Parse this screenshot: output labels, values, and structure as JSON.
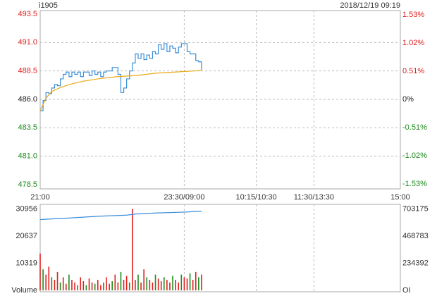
{
  "header": {
    "symbol": "i1905",
    "datetime": "2018/12/19 09:19"
  },
  "chart_data": [
    {
      "type": "line",
      "base": 486,
      "up_color": "#e02020",
      "down_color": "#1e8c1e",
      "grid": true,
      "xlim": [
        0,
        375
      ],
      "xticks": [
        {
          "value": 0,
          "label": "21:00"
        },
        {
          "value": 150,
          "label": "23:30/09:00"
        },
        {
          "value": 225,
          "label": "10:15/10:30"
        },
        {
          "value": 285,
          "label": "11:30/13:30"
        },
        {
          "value": 375,
          "label": "15:00"
        }
      ],
      "ylim": [
        478.5,
        493.5
      ],
      "yticks": [
        493.5,
        {
          "value": 491,
          "label": "491.0"
        },
        488.5,
        {
          "value": 486,
          "label": "486.0"
        },
        483.5,
        {
          "value": 481,
          "label": "481.0"
        },
        478.5
      ],
      "y2lim": [
        -1.543,
        1.543
      ],
      "y2ticks": [
        {
          "value": 1.53,
          "label": "1.53%"
        },
        {
          "value": 1.02,
          "label": "1.02%"
        },
        {
          "value": 0.51,
          "label": "0.51%"
        },
        {
          "value": 0,
          "label": "0%"
        },
        {
          "value": -0.51,
          "label": "-0.51%"
        },
        {
          "value": -1.02,
          "label": "-1.02%"
        },
        {
          "value": -1.53,
          "label": "-1.53%"
        }
      ],
      "series": [
        {
          "color": "#3a8ed8",
          "step": true,
          "x": [
            0,
            3,
            6,
            9,
            12,
            15,
            18,
            21,
            24,
            27,
            30,
            33,
            36,
            39,
            42,
            45,
            48,
            51,
            54,
            57,
            60,
            63,
            66,
            69,
            72,
            75,
            78,
            81,
            84,
            87,
            90,
            93,
            96,
            99,
            102,
            105,
            108,
            111,
            114,
            117,
            120,
            123,
            126,
            129,
            132,
            135,
            138,
            141,
            144,
            147,
            150,
            153,
            156,
            159,
            162,
            165,
            168
          ],
          "values": [
            485.0,
            485.9,
            486.6,
            486.5,
            487.0,
            487.3,
            487.2,
            487.8,
            488.2,
            488.4,
            488.0,
            488.4,
            488.2,
            488.4,
            488.0,
            488.4,
            488.4,
            488.1,
            488.5,
            488.2,
            488.4,
            488.0,
            488.4,
            488.5,
            488.5,
            488.8,
            488.8,
            488.2,
            486.6,
            487.0,
            487.8,
            488.5,
            489.2,
            490.0,
            489.6,
            490.0,
            489.5,
            489.9,
            489.6,
            490.2,
            490.0,
            490.8,
            490.4,
            490.9,
            490.2,
            490.7,
            490.5,
            490.1,
            490.6,
            490.9,
            490.9,
            490.2,
            490.0,
            490.0,
            489.4,
            489.3,
            488.6
          ]
        },
        {
          "color": "#e8a818",
          "x": [
            0,
            6,
            12,
            20,
            30,
            45,
            60,
            80,
            100,
            120,
            140,
            160,
            168
          ],
          "values": [
            485.0,
            486.1,
            486.7,
            487.0,
            487.3,
            487.6,
            487.8,
            488.0,
            488.1,
            488.3,
            488.4,
            488.5,
            488.55
          ]
        }
      ]
    },
    {
      "type": "bar",
      "grid": true,
      "xlim": [
        0,
        375
      ],
      "ylim": [
        0,
        32700
      ],
      "yticks": [
        {
          "value": 0,
          "label": "Volume"
        },
        10319,
        20637,
        30956
      ],
      "y2lim": [
        0,
        742800
      ],
      "y2ticks": [
        {
          "value": 0,
          "label": "OI"
        },
        234392,
        468783,
        703175
      ],
      "bar_x": [
        0,
        3,
        6,
        9,
        12,
        15,
        18,
        21,
        24,
        27,
        30,
        33,
        36,
        39,
        42,
        45,
        48,
        51,
        54,
        57,
        60,
        63,
        66,
        69,
        72,
        75,
        78,
        81,
        84,
        87,
        90,
        93,
        96,
        99,
        102,
        105,
        108,
        111,
        114,
        117,
        120,
        123,
        126,
        129,
        132,
        135,
        138,
        141,
        144,
        147,
        150,
        153,
        156,
        159,
        162,
        165,
        168
      ],
      "values": [
        14000,
        8000,
        6000,
        9000,
        5000,
        4000,
        7000,
        3000,
        5000,
        2500,
        6000,
        4000,
        3000,
        2000,
        5000,
        3500,
        2000,
        4500,
        3000,
        2500,
        4000,
        2000,
        3000,
        5000,
        2500,
        3500,
        6000,
        3000,
        7000,
        4000,
        5500,
        3000,
        31000,
        4000,
        6000,
        3000,
        8000,
        5000,
        4000,
        3000,
        6000,
        4500,
        3500,
        5000,
        4000,
        3000,
        5500,
        4000,
        3000,
        6000,
        5000,
        4500,
        6500,
        4000,
        7000,
        5000,
        6000
      ],
      "bar_colors": [
        "#e02020",
        "#1e8c1e",
        "#e02020",
        "#e02020",
        "#1e8c1e",
        "#e02020",
        "#e02020",
        "#1e8c1e",
        "#e02020",
        "#e02020",
        "#1e8c1e",
        "#e02020",
        "#e02020",
        "#1e8c1e",
        "#e02020",
        "#e02020",
        "#1e8c1e",
        "#e02020",
        "#e02020",
        "#1e8c1e",
        "#e02020",
        "#e02020",
        "#1e8c1e",
        "#e02020",
        "#e02020",
        "#1e8c1e",
        "#e02020",
        "#e02020",
        "#1e8c1e",
        "#e02020",
        "#e02020",
        "#1e8c1e",
        "#e02020",
        "#e02020",
        "#1e8c1e",
        "#e02020",
        "#e02020",
        "#1e8c1e",
        "#e02020",
        "#e02020",
        "#1e8c1e",
        "#e02020",
        "#e02020",
        "#1e8c1e",
        "#e02020",
        "#e02020",
        "#1e8c1e",
        "#e02020",
        "#e02020",
        "#1e8c1e",
        "#e02020",
        "#e02020",
        "#1e8c1e",
        "#e02020",
        "#e02020",
        "#1e8c1e",
        "#e02020"
      ],
      "series": [
        {
          "color": "#3a8ed8",
          "axis": "y2",
          "x": [
            0,
            30,
            60,
            90,
            100,
            120,
            150,
            168
          ],
          "values": [
            612000,
            625000,
            640000,
            650000,
            660000,
            668000,
            676000,
            684000
          ]
        }
      ]
    }
  ]
}
